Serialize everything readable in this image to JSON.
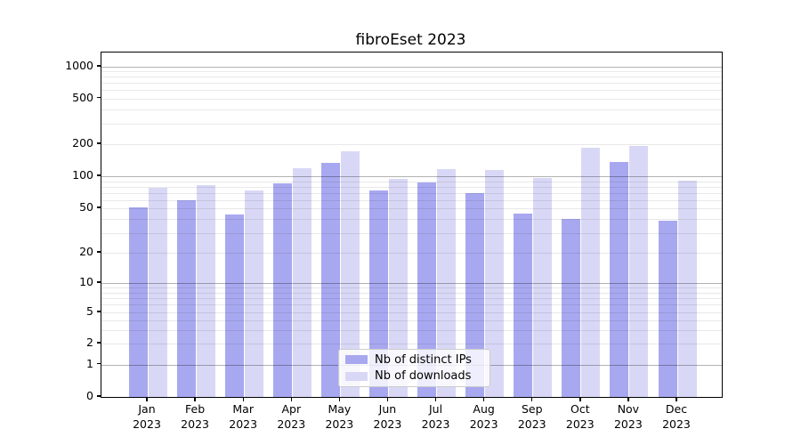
{
  "chart_data": {
    "type": "bar",
    "title": "fibroEset 2023",
    "months": [
      "Jan",
      "Feb",
      "Mar",
      "Apr",
      "May",
      "Jun",
      "Jul",
      "Aug",
      "Sep",
      "Oct",
      "Nov",
      "Dec"
    ],
    "year": "2023",
    "series": [
      {
        "name": "Nb of distinct IPs",
        "color": "#a8a8f0",
        "values": [
          51,
          60,
          44,
          85,
          134,
          73,
          88,
          69,
          45,
          40,
          136,
          39
        ]
      },
      {
        "name": "Nb of downloads",
        "color": "#d8d8f6",
        "values": [
          78,
          82,
          74,
          118,
          171,
          94,
          116,
          114,
          96,
          185,
          192,
          91
        ]
      }
    ],
    "y_ticks": [
      0,
      1,
      2,
      5,
      10,
      20,
      50,
      100,
      200,
      500,
      1000
    ],
    "yscale": "symlog",
    "ylim": [
      0,
      1400
    ],
    "xlabel": "",
    "ylabel": "",
    "grid": true,
    "legend_position": "lower center"
  }
}
